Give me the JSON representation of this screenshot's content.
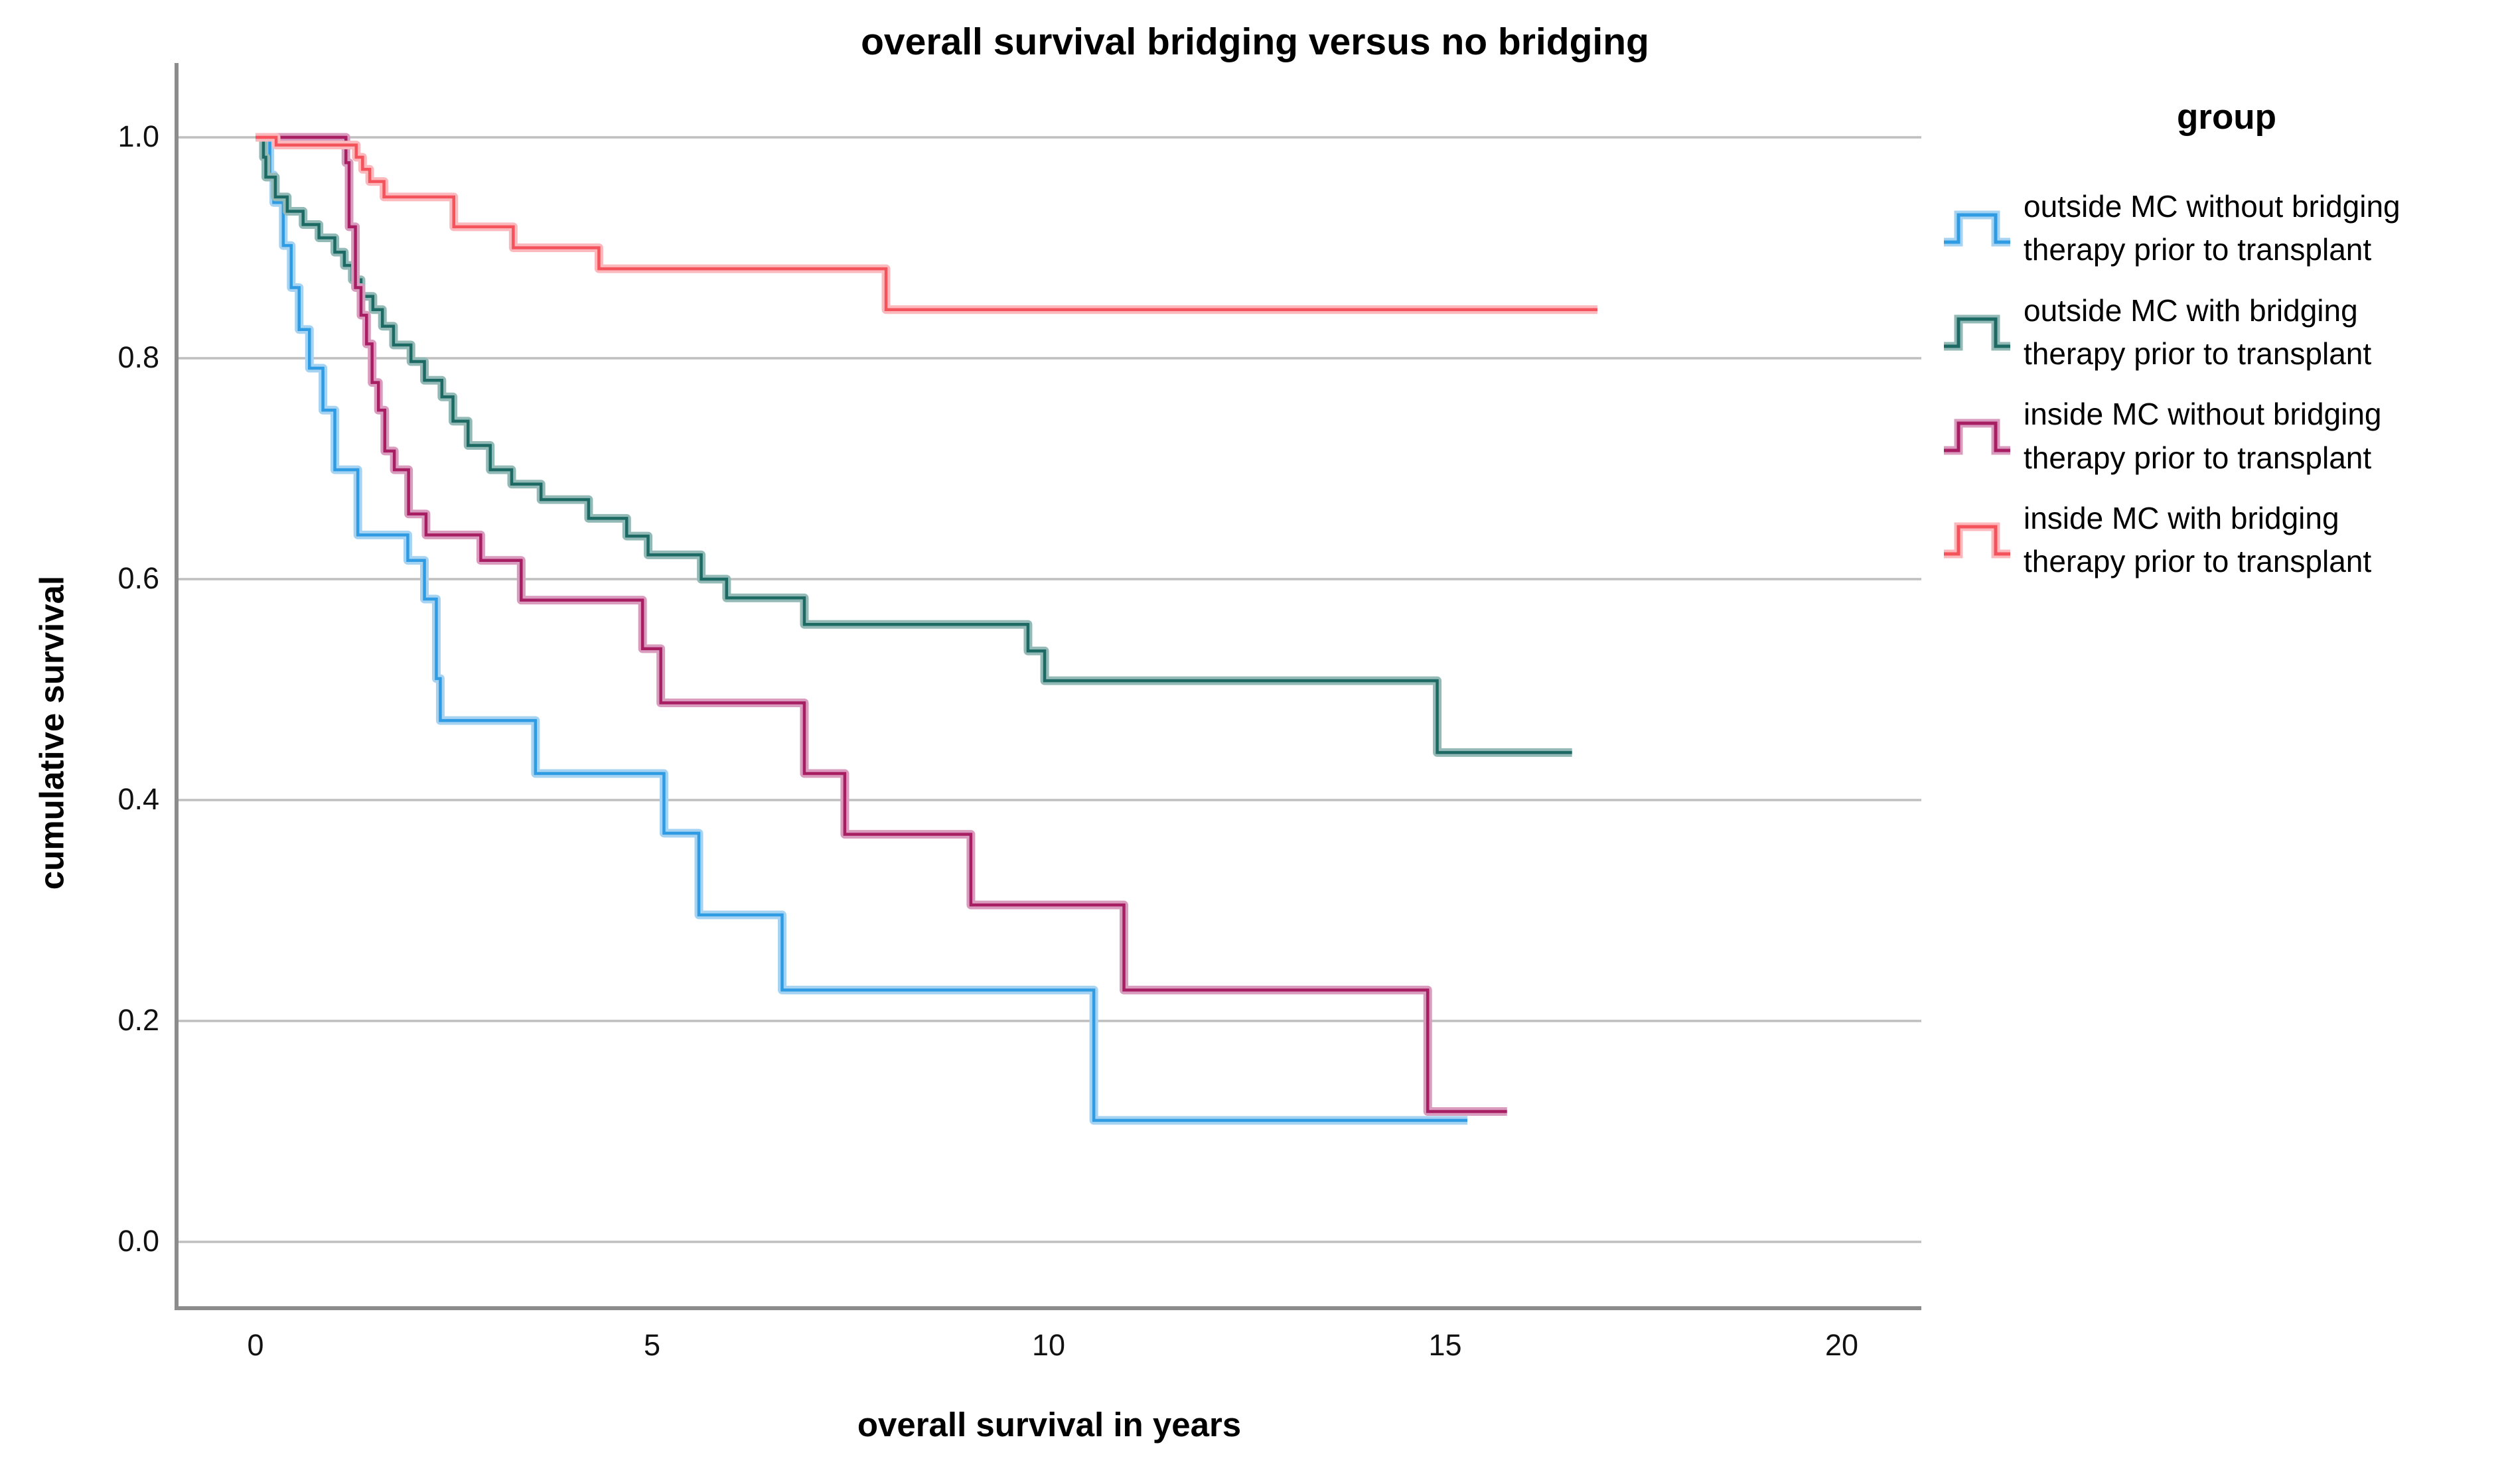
{
  "title": "overall survival bridging versus no bridging",
  "y_axis": {
    "label": "cumulative survival",
    "ticks": [
      "1.0",
      "0.8",
      "0.6",
      "0.4",
      "0.2",
      "0.0"
    ],
    "tick_values": [
      1.0,
      0.8,
      0.6,
      0.4,
      0.2,
      0.0
    ]
  },
  "x_axis": {
    "label": "overall survival in years",
    "ticks": [
      "0",
      "5",
      "10",
      "15",
      "20"
    ],
    "tick_values": [
      0,
      5,
      10,
      15,
      20
    ]
  },
  "legend": {
    "title": "group",
    "items": [
      {
        "name": "outside MC without bridging therapy prior to transplant",
        "lines": [
          "outside MC without bridging",
          "therapy prior to transplant"
        ],
        "color": "#2F9BE3",
        "halo": "#A6D3F2"
      },
      {
        "name": "outside MC with bridging therapy prior to transplant",
        "lines": [
          "outside MC with bridging",
          "therapy prior to transplant"
        ],
        "color": "#1D6A64",
        "halo": "#93BAB6"
      },
      {
        "name": "inside MC without bridging therapy prior to transplant",
        "lines": [
          "inside MC without bridging",
          "therapy prior to transplant"
        ],
        "color": "#A81E63",
        "halo": "#DA9CBE"
      },
      {
        "name": "inside MC with bridging therapy prior to transplant",
        "lines": [
          "inside MC with bridging",
          "therapy prior to transplant"
        ],
        "color": "#F4535C",
        "halo": "#FBB9BD"
      }
    ]
  },
  "style_colors": {
    "grid": "#BFBFBF",
    "axis": "#8C8C8C",
    "background": "#FFFFFF"
  },
  "chart_data": {
    "type": "line",
    "subtype": "kaplan-meier-step",
    "title": "overall survival bridging versus no bridging",
    "xlabel": "overall survival in years",
    "ylabel": "cumulative survival",
    "xlim": [
      -1,
      21
    ],
    "ylim": [
      0.0,
      1.0
    ],
    "x_ticks": [
      0,
      5,
      10,
      15,
      20
    ],
    "y_ticks": [
      0.0,
      0.2,
      0.4,
      0.6,
      0.8,
      1.0
    ],
    "grid": "horizontal",
    "legend_position": "right",
    "series": [
      {
        "name": "outside MC without bridging therapy prior to transplant",
        "color": "#2F9BE3",
        "halo": "#A6D3F2",
        "points": [
          [
            0,
            1.0
          ],
          [
            0.18,
            0.966
          ],
          [
            0.23,
            0.941
          ],
          [
            0.35,
            0.902
          ],
          [
            0.45,
            0.864
          ],
          [
            0.55,
            0.826
          ],
          [
            0.68,
            0.791
          ],
          [
            0.85,
            0.753
          ],
          [
            1.0,
            0.699
          ],
          [
            1.29,
            0.64
          ],
          [
            1.92,
            0.617
          ],
          [
            2.13,
            0.582
          ],
          [
            2.28,
            0.51
          ],
          [
            2.33,
            0.472
          ],
          [
            3.53,
            0.424
          ],
          [
            5.15,
            0.37
          ],
          [
            5.59,
            0.296
          ],
          [
            6.64,
            0.228
          ],
          [
            10.57,
            0.11
          ]
        ],
        "end_x": 15.28
      },
      {
        "name": "outside MC with bridging therapy prior to transplant",
        "color": "#1D6A64",
        "halo": "#93BAB6",
        "points": [
          [
            0,
            1.0
          ],
          [
            0.1,
            0.982
          ],
          [
            0.13,
            0.964
          ],
          [
            0.25,
            0.946
          ],
          [
            0.4,
            0.933
          ],
          [
            0.6,
            0.921
          ],
          [
            0.8,
            0.909
          ],
          [
            1.0,
            0.896
          ],
          [
            1.12,
            0.884
          ],
          [
            1.22,
            0.871
          ],
          [
            1.33,
            0.856
          ],
          [
            1.48,
            0.844
          ],
          [
            1.6,
            0.829
          ],
          [
            1.74,
            0.812
          ],
          [
            1.96,
            0.797
          ],
          [
            2.13,
            0.78
          ],
          [
            2.35,
            0.765
          ],
          [
            2.49,
            0.743
          ],
          [
            2.68,
            0.721
          ],
          [
            2.96,
            0.699
          ],
          [
            3.23,
            0.686
          ],
          [
            3.6,
            0.672
          ],
          [
            4.2,
            0.655
          ],
          [
            4.68,
            0.639
          ],
          [
            4.95,
            0.622
          ],
          [
            5.62,
            0.6
          ],
          [
            5.94,
            0.583
          ],
          [
            6.92,
            0.559
          ],
          [
            9.74,
            0.535
          ],
          [
            9.95,
            0.508
          ],
          [
            14.9,
            0.443
          ]
        ],
        "end_x": 16.6
      },
      {
        "name": "inside MC without bridging therapy prior to transplant",
        "color": "#A81E63",
        "halo": "#DA9CBE",
        "points": [
          [
            0,
            1.0
          ],
          [
            1.14,
            0.977
          ],
          [
            1.18,
            0.919
          ],
          [
            1.26,
            0.864
          ],
          [
            1.33,
            0.839
          ],
          [
            1.4,
            0.813
          ],
          [
            1.47,
            0.778
          ],
          [
            1.55,
            0.753
          ],
          [
            1.63,
            0.716
          ],
          [
            1.75,
            0.699
          ],
          [
            1.93,
            0.659
          ],
          [
            2.15,
            0.64
          ],
          [
            2.84,
            0.617
          ],
          [
            3.35,
            0.581
          ],
          [
            4.88,
            0.537
          ],
          [
            5.11,
            0.488
          ],
          [
            6.92,
            0.424
          ],
          [
            7.43,
            0.369
          ],
          [
            9.02,
            0.305
          ],
          [
            10.95,
            0.228
          ],
          [
            14.78,
            0.118
          ]
        ],
        "end_x": 15.78
      },
      {
        "name": "inside MC with bridging therapy prior to transplant",
        "color": "#F4535C",
        "halo": "#FBB9BD",
        "points": [
          [
            0,
            1.0
          ],
          [
            0.26,
            0.993
          ],
          [
            1.27,
            0.982
          ],
          [
            1.35,
            0.971
          ],
          [
            1.44,
            0.96
          ],
          [
            1.62,
            0.946
          ],
          [
            2.5,
            0.919
          ],
          [
            3.25,
            0.9
          ],
          [
            4.33,
            0.881
          ],
          [
            7.95,
            0.844
          ]
        ],
        "end_x": 16.92
      }
    ]
  }
}
